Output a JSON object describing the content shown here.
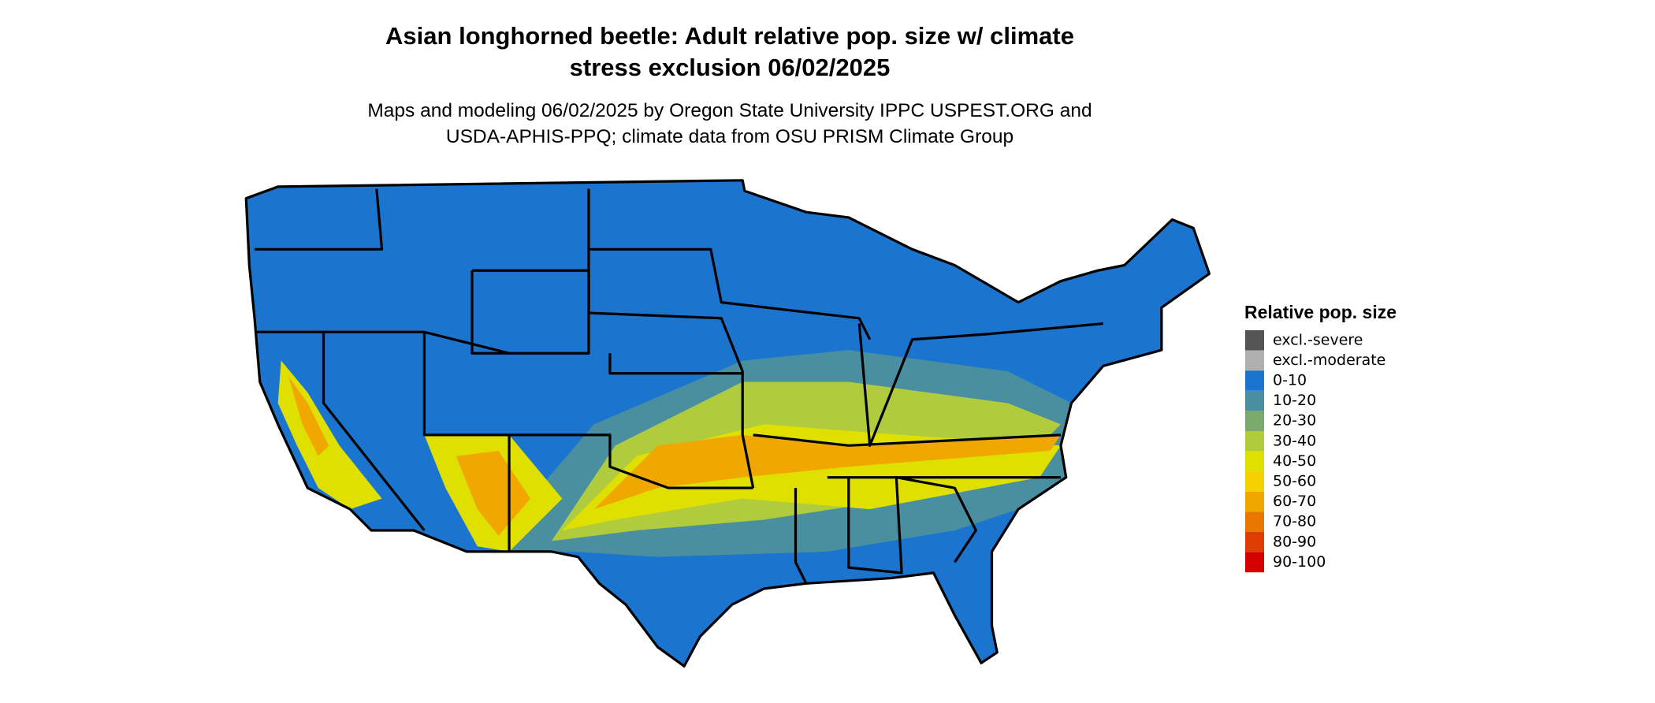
{
  "title": [
    "Asian longhorned beetle: Adult relative pop. size w/ climate",
    "stress exclusion 06/02/2025"
  ],
  "subtitle": [
    "Maps and modeling 06/02/2025 by Oregon State University IPPC USPEST.ORG and",
    "USDA-APHIS-PPQ; climate data from OSU PRISM Climate Group"
  ],
  "legend": {
    "title": "Relative pop. size",
    "items": [
      {
        "label": "excl.-severe",
        "color": "#555555"
      },
      {
        "label": "excl.-moderate",
        "color": "#b0b0b0"
      },
      {
        "label": "0-10",
        "color": "#1b75cf"
      },
      {
        "label": "10-20",
        "color": "#4a8fa0"
      },
      {
        "label": "20-30",
        "color": "#7aaa6e"
      },
      {
        "label": "30-40",
        "color": "#b0cc3e"
      },
      {
        "label": "40-50",
        "color": "#e0e000"
      },
      {
        "label": "50-60",
        "color": "#f5d000"
      },
      {
        "label": "60-70",
        "color": "#f0a800"
      },
      {
        "label": "70-80",
        "color": "#e87800"
      },
      {
        "label": "80-90",
        "color": "#dd3d00"
      },
      {
        "label": "90-100",
        "color": "#d40000"
      }
    ]
  }
}
